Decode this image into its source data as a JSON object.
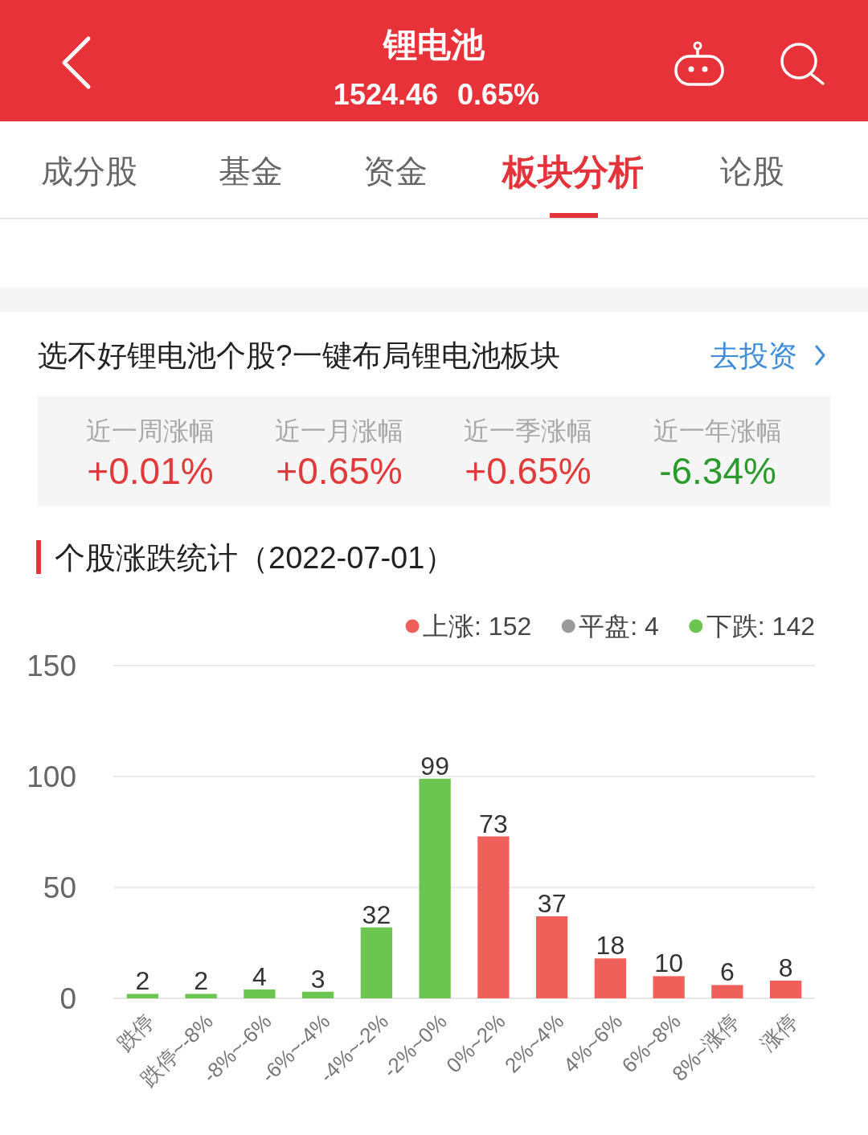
{
  "chart_data": {
    "type": "bar",
    "title": "个股涨跌统计（2022-07-01）",
    "categories": [
      "跌停",
      "跌停~-8%",
      "-8%~-6%",
      "-6%~-4%",
      "-4%~-2%",
      "-2%~0%",
      "0%~2%",
      "2%~4%",
      "4%~6%",
      "6%~8%",
      "8%~涨停",
      "涨停"
    ],
    "series": [
      {
        "name": "上涨: 152",
        "color": "#f0605a",
        "values": [
          null,
          null,
          null,
          null,
          null,
          null,
          73,
          37,
          18,
          10,
          6,
          8
        ]
      },
      {
        "name": "平盘: 4",
        "color": "#9b9b9b",
        "values": [
          null,
          null,
          null,
          null,
          null,
          null,
          null,
          null,
          null,
          null,
          null,
          null
        ]
      },
      {
        "name": "下跌: 142",
        "color": "#6cc551",
        "values": [
          2,
          2,
          4,
          3,
          32,
          99,
          null,
          null,
          null,
          null,
          null,
          null
        ]
      }
    ],
    "stacked": true,
    "ylim": [
      0,
      150
    ],
    "yticks": [
      0,
      50,
      100,
      150
    ],
    "grid": "y",
    "legend": "top right",
    "data_labels": true,
    "annotations": [
      "锂电池",
      "1524.46",
      "0.65%",
      "成分股",
      "基金",
      "资金",
      "板块分析",
      "论股",
      "选不好锂电池个股?一键布局锂电池板块",
      "去投资",
      "近一周涨幅",
      "+0.01%",
      "近一月涨幅",
      "+0.65%",
      "近一季涨幅",
      "+0.65%",
      "近一年涨幅",
      "-6.34%"
    ]
  }
}
